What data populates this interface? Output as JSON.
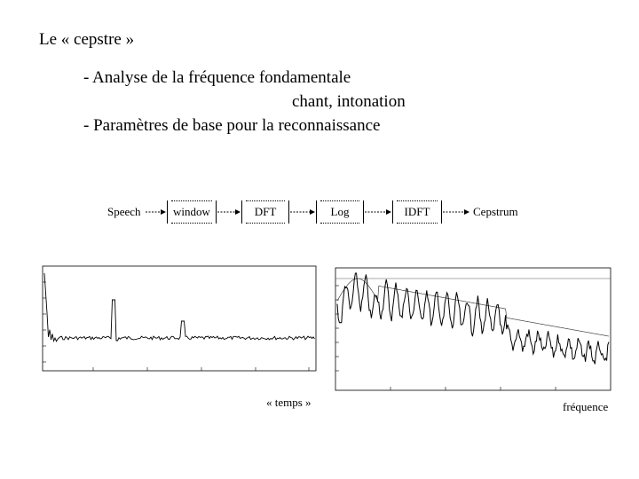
{
  "slide": {
    "title": "Le « cepstre »",
    "bullets": [
      "- Analyse de la fréquence fondamentale",
      "chant, intonation",
      "- Paramètres de base pour la reconnaissance"
    ]
  },
  "pipeline": {
    "input": "Speech",
    "steps": [
      "window",
      "DFT",
      "Log",
      "IDFT"
    ],
    "output": "Cepstrum"
  },
  "figures": {
    "left_caption": "« temps »",
    "right_caption": "fréquence"
  }
}
